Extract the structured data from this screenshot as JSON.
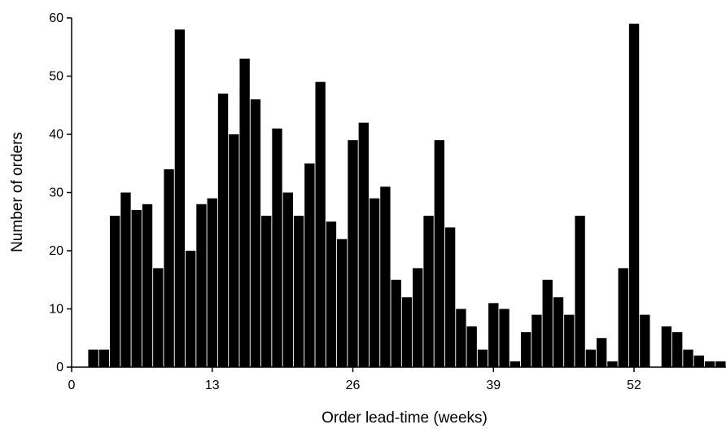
{
  "chart_data": {
    "type": "bar",
    "xlabel": "Order lead-time (weeks)",
    "ylabel": "Number of orders",
    "xlim": [
      0,
      60.5
    ],
    "ylim": [
      0,
      60
    ],
    "x_ticks": [
      0,
      13,
      26,
      39,
      52
    ],
    "y_ticks": [
      0,
      10,
      20,
      30,
      40,
      50,
      60
    ],
    "grid": false,
    "legend": "none",
    "bar_color": "#000000",
    "x": [
      2,
      3,
      4,
      5,
      6,
      7,
      8,
      9,
      10,
      11,
      12,
      13,
      14,
      15,
      16,
      17,
      18,
      19,
      20,
      21,
      22,
      23,
      24,
      25,
      26,
      27,
      28,
      29,
      30,
      31,
      32,
      33,
      34,
      35,
      36,
      37,
      38,
      39,
      40,
      41,
      42,
      43,
      44,
      45,
      46,
      47,
      48,
      49,
      50,
      51,
      52,
      53,
      54,
      55,
      56,
      57,
      58,
      59,
      60
    ],
    "values": [
      3,
      3,
      26,
      30,
      27,
      28,
      17,
      34,
      58,
      20,
      28,
      29,
      47,
      40,
      53,
      46,
      26,
      41,
      30,
      26,
      35,
      49,
      25,
      22,
      39,
      42,
      29,
      31,
      15,
      12,
      17,
      26,
      39,
      24,
      10,
      7,
      3,
      11,
      10,
      1,
      6,
      9,
      15,
      12,
      9,
      26,
      3,
      5,
      1,
      17,
      59,
      9,
      0,
      7,
      6,
      3,
      2,
      1,
      1
    ]
  }
}
